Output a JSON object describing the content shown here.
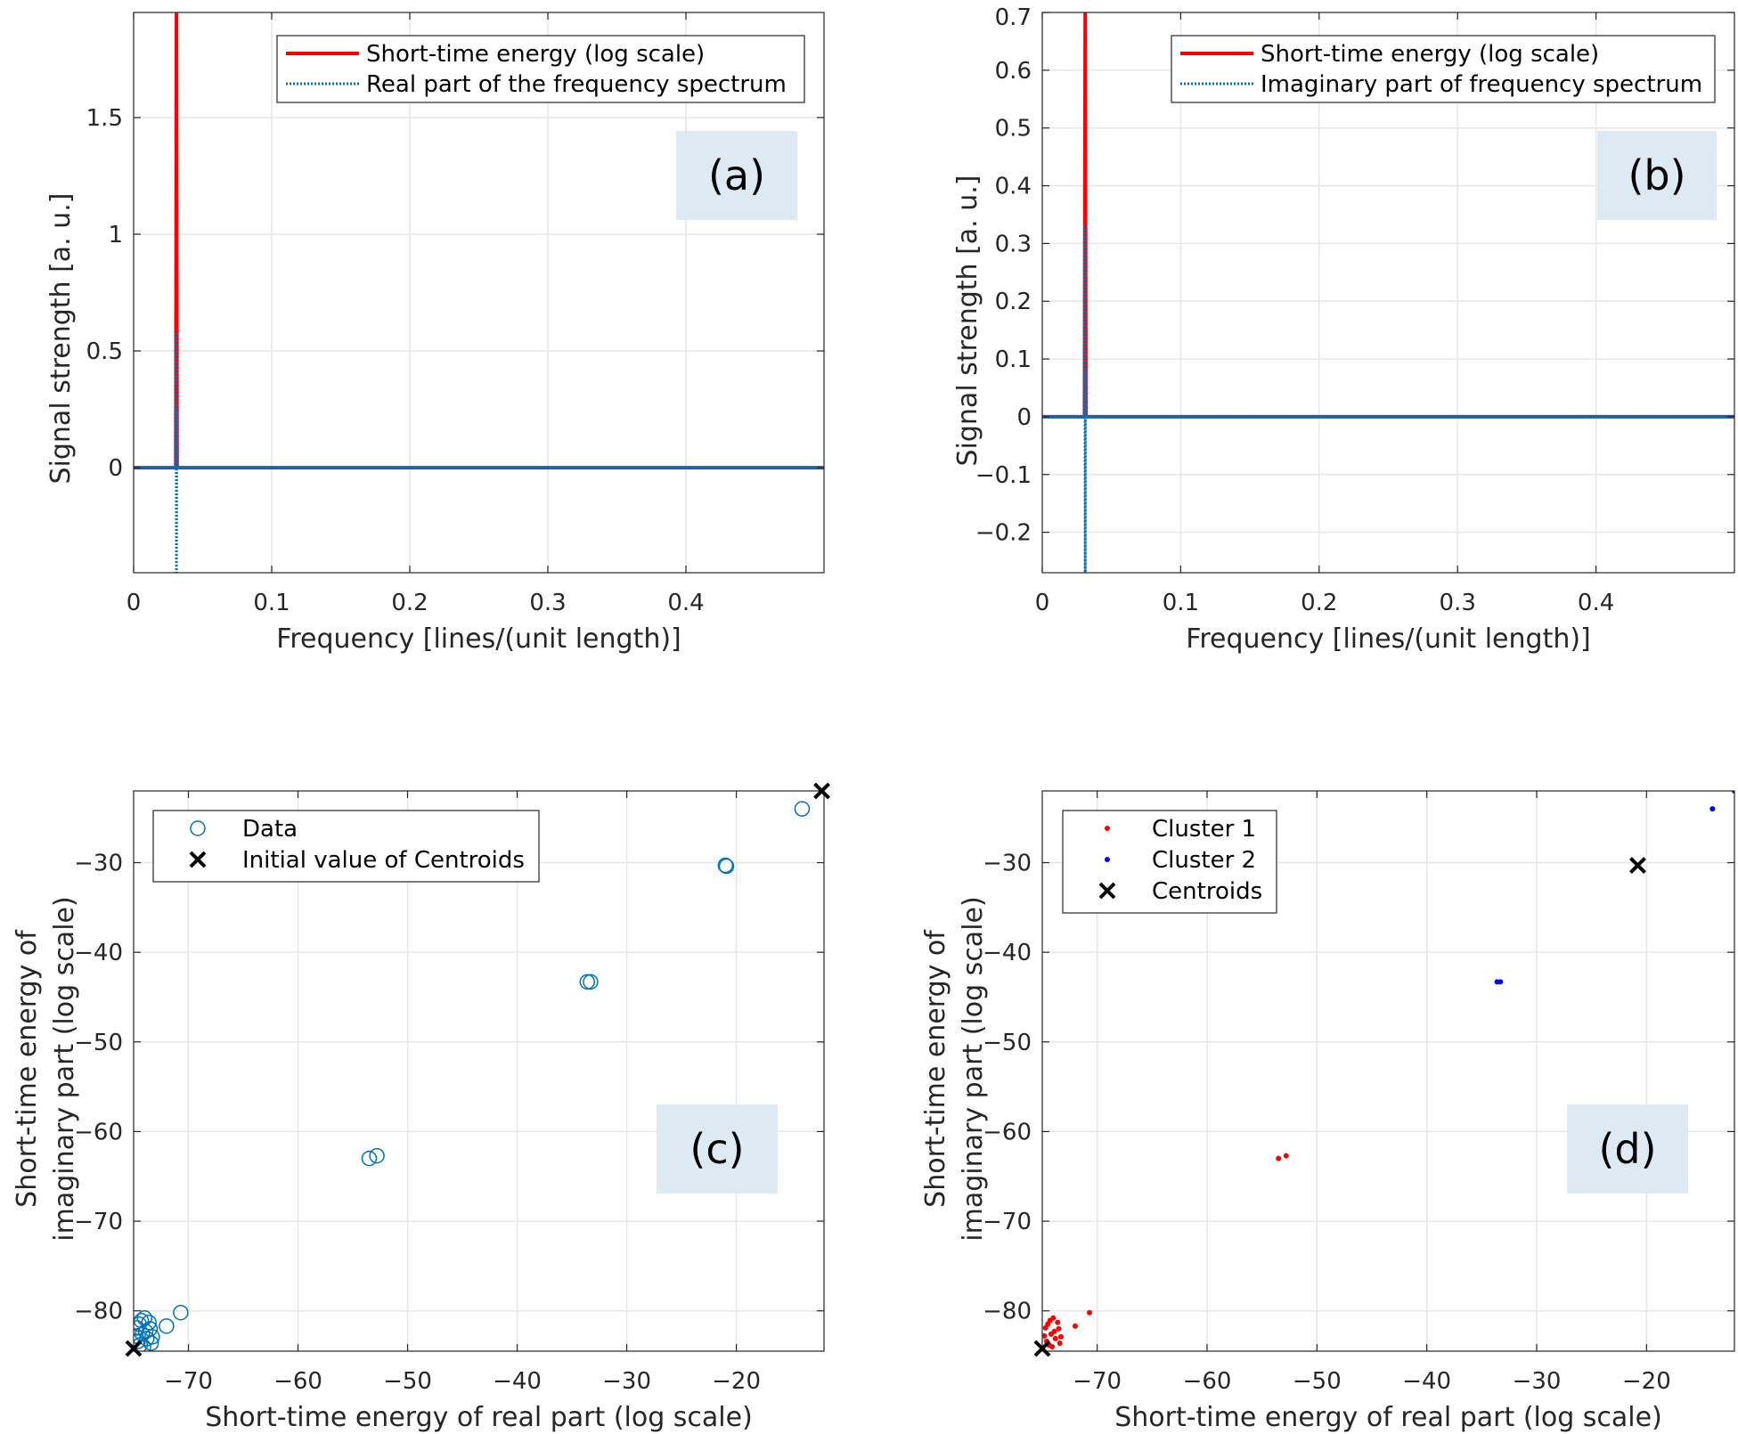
{
  "chart_data": [
    {
      "id": "a",
      "type": "line",
      "tag": "(a)",
      "xlabel": "Frequency [lines/(unit length)]",
      "ylabel": "Signal strength  [a. u.]",
      "xlim": [
        0,
        0.5
      ],
      "ylim": [
        -0.45,
        1.95
      ],
      "xticks": [
        0,
        0.1,
        0.2,
        0.3,
        0.4
      ],
      "xtick_labels": [
        "0",
        "0.1",
        "0.2",
        "0.3",
        "0.4"
      ],
      "yticks": [
        0,
        0.5,
        1,
        1.5
      ],
      "ytick_labels": [
        "0",
        "0.5",
        "1",
        "1.5"
      ],
      "grid": true,
      "legend_position": "top-right",
      "series": [
        {
          "name": "Short-time energy (log scale)",
          "color": "#ff0000",
          "style": "solid",
          "x": [
            0,
            0.0305,
            0.031,
            0.0315,
            0.5
          ],
          "y": [
            0,
            0,
            1.95,
            0,
            0
          ]
        },
        {
          "name": "Real part of the frequency spectrum",
          "color": "#0072bd",
          "style": "dotted",
          "x": [
            0,
            0.0303,
            0.0307,
            0.031,
            0.0313,
            0.0317,
            0.5
          ],
          "y": [
            0,
            0,
            0.58,
            -0.45,
            0.25,
            0,
            0
          ]
        }
      ]
    },
    {
      "id": "b",
      "type": "line",
      "tag": "(b)",
      "xlabel": "Frequency [lines/(unit length)]",
      "ylabel": "Signal strength  [a. u.]",
      "xlim": [
        0,
        0.5
      ],
      "ylim": [
        -0.27,
        0.7
      ],
      "xticks": [
        0,
        0.1,
        0.2,
        0.3,
        0.4
      ],
      "xtick_labels": [
        "0",
        "0.1",
        "0.2",
        "0.3",
        "0.4"
      ],
      "yticks": [
        -0.2,
        -0.1,
        0,
        0.1,
        0.2,
        0.3,
        0.4,
        0.5,
        0.6,
        0.7
      ],
      "ytick_labels": [
        "−0.2",
        "−0.1",
        "0",
        "0.1",
        "0.2",
        "0.3",
        "0.4",
        "0.5",
        "0.6",
        "0.7"
      ],
      "grid": true,
      "legend_position": "top-right",
      "series": [
        {
          "name": "Short-time energy (log scale)",
          "color": "#ff0000",
          "style": "solid",
          "x": [
            0,
            0.0305,
            0.031,
            0.0315,
            0.5
          ],
          "y": [
            0,
            0,
            0.7,
            0,
            0
          ]
        },
        {
          "name": "Imaginary part of frequency spectrum",
          "color": "#0072bd",
          "style": "dotted",
          "x": [
            0,
            0.0303,
            0.0307,
            0.031,
            0.0313,
            0.0317,
            0.5
          ],
          "y": [
            0,
            0,
            0.33,
            -0.27,
            0.08,
            0,
            0
          ]
        }
      ]
    },
    {
      "id": "c",
      "type": "scatter",
      "tag": "(c)",
      "xlabel": "Short-time energy of real part  (log scale)",
      "ylabel_lines": [
        "Short-time energy of",
        "imaginary part  (log scale)"
      ],
      "xlim": [
        -75,
        -12
      ],
      "ylim": [
        -84.5,
        -22
      ],
      "xticks": [
        -70,
        -60,
        -50,
        -40,
        -30,
        -20
      ],
      "xtick_labels": [
        "−70",
        "−60",
        "−50",
        "−40",
        "−30",
        "−20"
      ],
      "yticks": [
        -80,
        -70,
        -60,
        -50,
        -40,
        -30
      ],
      "ytick_labels": [
        "−80",
        "−70",
        "−60",
        "−50",
        "−40",
        "−30"
      ],
      "grid": true,
      "legend_position": "top-left",
      "series": [
        {
          "name": "Data",
          "marker": "circle",
          "color": "#0072bd",
          "points": [
            [
              -14,
              -24
            ],
            [
              -21,
              -30.3
            ],
            [
              -20.9,
              -30.4
            ],
            [
              -33.6,
              -43.3
            ],
            [
              -33.3,
              -43.3
            ],
            [
              -53.5,
              -63
            ],
            [
              -52.8,
              -62.7
            ],
            [
              -70.7,
              -80.2
            ],
            [
              -72,
              -81.7
            ],
            [
              -74,
              -80.8
            ],
            [
              -74.5,
              -81.5
            ],
            [
              -73.5,
              -82
            ],
            [
              -74.2,
              -82.6
            ],
            [
              -73.8,
              -83.1
            ],
            [
              -74.6,
              -83.4
            ],
            [
              -73.4,
              -83.6
            ],
            [
              -74.1,
              -84
            ],
            [
              -74.8,
              -82.8
            ],
            [
              -73.6,
              -81.3
            ],
            [
              -74.4,
              -83.8
            ],
            [
              -73.9,
              -82.3
            ],
            [
              -74.7,
              -81.9
            ],
            [
              -73.3,
              -82.9
            ],
            [
              -74.3,
              -81.1
            ]
          ]
        },
        {
          "name": "Initial value of Centroids",
          "marker": "x",
          "color": "#000000",
          "points": [
            [
              -12.2,
              -22
            ],
            [
              -75,
              -84.2
            ]
          ]
        }
      ]
    },
    {
      "id": "d",
      "type": "scatter",
      "tag": "(d)",
      "xlabel": "Short-time energy of real part  (log scale)",
      "ylabel_lines": [
        "Short-time energy of",
        "imaginary part  (log scale)"
      ],
      "xlim": [
        -75,
        -12
      ],
      "ylim": [
        -84.5,
        -22
      ],
      "xticks": [
        -70,
        -60,
        -50,
        -40,
        -30,
        -20
      ],
      "xtick_labels": [
        "−70",
        "−60",
        "−50",
        "−40",
        "−30",
        "−20"
      ],
      "yticks": [
        -80,
        -70,
        -60,
        -50,
        -40,
        -30
      ],
      "ytick_labels": [
        "−80",
        "−70",
        "−60",
        "−50",
        "−40",
        "−30"
      ],
      "grid": true,
      "legend_position": "top-left",
      "series": [
        {
          "name": "Cluster 1",
          "marker": "dot",
          "color": "#ff0000",
          "points": [
            [
              -53.5,
              -63
            ],
            [
              -52.8,
              -62.7
            ],
            [
              -70.7,
              -80.2
            ],
            [
              -72,
              -81.7
            ],
            [
              -74,
              -80.8
            ],
            [
              -74.5,
              -81.5
            ],
            [
              -73.5,
              -82
            ],
            [
              -74.2,
              -82.6
            ],
            [
              -73.8,
              -83.1
            ],
            [
              -74.6,
              -83.4
            ],
            [
              -73.4,
              -83.6
            ],
            [
              -74.1,
              -84
            ],
            [
              -74.8,
              -82.8
            ],
            [
              -73.6,
              -81.3
            ],
            [
              -74.4,
              -83.8
            ],
            [
              -73.9,
              -82.3
            ],
            [
              -74.7,
              -81.9
            ],
            [
              -73.3,
              -82.9
            ],
            [
              -74.3,
              -81.1
            ]
          ]
        },
        {
          "name": "Cluster 2",
          "marker": "dot",
          "color": "#0000ff",
          "points": [
            [
              -12,
              -22
            ],
            [
              -14,
              -24
            ],
            [
              -33.6,
              -43.3
            ],
            [
              -33.3,
              -43.3
            ]
          ]
        },
        {
          "name": "Centroids",
          "marker": "x",
          "color": "#000000",
          "points": [
            [
              -20.8,
              -30.3
            ],
            [
              -75,
              -84.2
            ]
          ]
        }
      ]
    }
  ]
}
